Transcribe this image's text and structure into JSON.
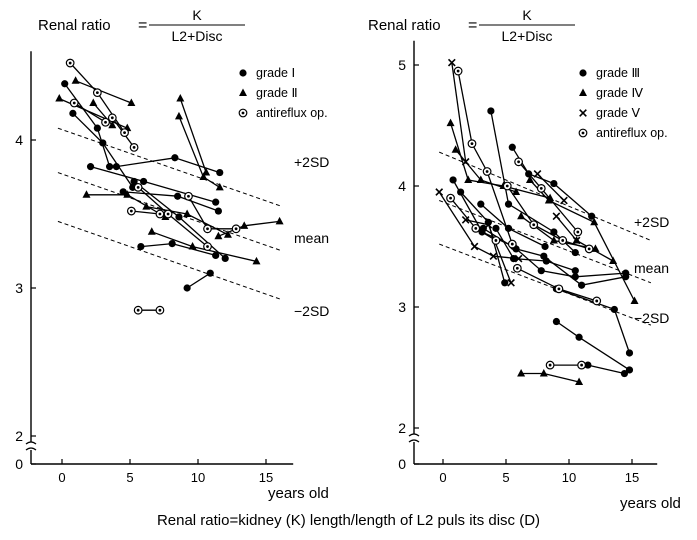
{
  "caption": "Renal ratio=kidney (K) length/length of L2 puls its disc (D)",
  "colors": {
    "ink": "#000000",
    "background": "#ffffff"
  },
  "chart_data": [
    {
      "type": "scatter",
      "title": {
        "label": "Renal ratio",
        "eq": "=",
        "numerator": "K",
        "denominator": "L2+Disc"
      },
      "xlabel": "years old",
      "xlim": [
        -2,
        17
      ],
      "ylim": [
        0,
        4.6
      ],
      "axis_break": true,
      "x_ticks": [
        0,
        5,
        10,
        15
      ],
      "y_ticks": [
        0,
        2,
        3,
        4
      ],
      "y_tick_labels": [
        "0",
        "2",
        "3",
        "4"
      ],
      "legend": {
        "position": "top-right",
        "items": [
          {
            "marker": "circle",
            "label": "grade Ⅰ"
          },
          {
            "marker": "triangle",
            "label": "grade Ⅱ"
          },
          {
            "marker": "ring",
            "label": "antireflux op."
          }
        ]
      },
      "reference_lines": [
        {
          "label": "+2SD",
          "points": [
            [
              -0.3,
              4.08
            ],
            [
              16.2,
              3.55
            ]
          ]
        },
        {
          "label": "mean",
          "points": [
            [
              -0.3,
              3.78
            ],
            [
              16.2,
              3.25
            ]
          ]
        },
        {
          "label": "−2SD",
          "points": [
            [
              -0.3,
              3.45
            ],
            [
              16.2,
              2.92
            ]
          ]
        }
      ],
      "series": [
        {
          "marker": "circle",
          "tracks": [
            [
              [
                0.2,
                4.38
              ],
              [
                2.6,
                4.08
              ],
              [
                3.5,
                3.82
              ]
            ],
            [
              [
                0.8,
                4.18
              ],
              [
                3.0,
                3.98
              ],
              [
                5.2,
                3.68
              ]
            ],
            [
              [
                2.1,
                3.82
              ],
              [
                6.0,
                3.72
              ],
              [
                11.3,
                3.58
              ]
            ],
            [
              [
                4.0,
                3.82
              ],
              [
                8.3,
                3.88
              ],
              [
                11.6,
                3.78
              ]
            ],
            [
              [
                5.3,
                3.72
              ],
              [
                8.6,
                3.48
              ],
              [
                12.0,
                3.2
              ]
            ],
            [
              [
                4.5,
                3.65
              ],
              [
                8.5,
                3.62
              ],
              [
                11.5,
                3.52
              ]
            ],
            [
              [
                5.8,
                3.28
              ],
              [
                8.1,
                3.3
              ],
              [
                11.3,
                3.22
              ]
            ],
            [
              [
                9.2,
                3.0
              ],
              [
                10.9,
                3.1
              ]
            ]
          ]
        },
        {
          "marker": "triangle",
          "tracks": [
            [
              [
                -0.2,
                4.28
              ],
              [
                4.8,
                4.08
              ]
            ],
            [
              [
                1.0,
                4.4
              ],
              [
                5.1,
                4.25
              ]
            ],
            [
              [
                2.3,
                4.25
              ],
              [
                3.7,
                4.1
              ]
            ],
            [
              [
                8.7,
                4.28
              ],
              [
                10.6,
                3.78
              ]
            ],
            [
              [
                8.6,
                4.16
              ],
              [
                10.4,
                3.75
              ],
              [
                11.6,
                3.68
              ]
            ],
            [
              [
                1.8,
                3.63
              ],
              [
                4.8,
                3.63
              ],
              [
                7.6,
                3.48
              ]
            ],
            [
              [
                6.6,
                3.38
              ],
              [
                9.6,
                3.28
              ],
              [
                14.3,
                3.18
              ]
            ],
            [
              [
                11.5,
                3.35
              ],
              [
                13.4,
                3.42
              ],
              [
                16.0,
                3.45
              ]
            ],
            [
              [
                6.2,
                3.55
              ],
              [
                9.2,
                3.5
              ],
              [
                12.2,
                3.36
              ]
            ]
          ]
        },
        {
          "marker": "ring",
          "tracks": [
            [
              [
                0.6,
                4.52
              ],
              [
                2.6,
                4.32
              ],
              [
                4.6,
                4.05
              ]
            ],
            [
              [
                0.9,
                4.25
              ],
              [
                3.2,
                4.12
              ]
            ],
            [
              [
                3.7,
                4.15
              ],
              [
                5.3,
                3.95
              ]
            ],
            [
              [
                5.6,
                3.68
              ],
              [
                7.8,
                3.5
              ],
              [
                10.7,
                3.28
              ]
            ],
            [
              [
                5.1,
                3.52
              ],
              [
                7.2,
                3.5
              ]
            ],
            [
              [
                9.3,
                3.62
              ],
              [
                10.7,
                3.4
              ],
              [
                12.8,
                3.4
              ]
            ],
            [
              [
                5.6,
                2.85
              ],
              [
                7.2,
                2.85
              ]
            ]
          ]
        }
      ]
    },
    {
      "type": "scatter",
      "title": {
        "label": "Renal ratio",
        "eq": "=",
        "numerator": "K",
        "denominator": "L2+Disc"
      },
      "xlabel": "years old",
      "xlim": [
        -1.5,
        17
      ],
      "ylim": [
        0,
        5.2
      ],
      "axis_break": true,
      "x_ticks": [
        0,
        5,
        10,
        15
      ],
      "y_ticks": [
        0,
        2,
        3,
        4,
        5
      ],
      "y_tick_labels": [
        "0",
        "2",
        "3",
        "4",
        "5"
      ],
      "legend": {
        "position": "top-right",
        "items": [
          {
            "marker": "circle",
            "label": "grade Ⅲ"
          },
          {
            "marker": "triangle",
            "label": "grade Ⅳ"
          },
          {
            "marker": "cross",
            "label": "grade Ⅴ"
          },
          {
            "marker": "ring",
            "label": "antireflux op."
          }
        ]
      },
      "reference_lines": [
        {
          "label": "+2SD",
          "points": [
            [
              -0.3,
              4.28
            ],
            [
              16.5,
              3.55
            ]
          ]
        },
        {
          "label": "mean",
          "points": [
            [
              -0.3,
              3.88
            ],
            [
              16.5,
              3.2
            ]
          ]
        },
        {
          "label": "−2SD",
          "points": [
            [
              -0.3,
              3.52
            ],
            [
              16.5,
              2.85
            ]
          ]
        }
      ],
      "series": [
        {
          "marker": "circle",
          "tracks": [
            [
              [
                3.8,
                4.62
              ],
              [
                5.2,
                3.85
              ],
              [
                8.8,
                3.62
              ],
              [
                10.5,
                3.45
              ]
            ],
            [
              [
                0.8,
                4.05
              ],
              [
                3.1,
                3.62
              ],
              [
                5.6,
                3.5
              ],
              [
                7.8,
                3.3
              ],
              [
                10.5,
                3.25
              ],
              [
                14.5,
                3.28
              ]
            ],
            [
              [
                3.2,
                3.65
              ],
              [
                5.8,
                3.48
              ],
              [
                8.0,
                3.42
              ],
              [
                11.0,
                3.18
              ],
              [
                14.5,
                3.25
              ]
            ],
            [
              [
                5.5,
                4.32
              ],
              [
                6.8,
                4.1
              ],
              [
                8.8,
                4.02
              ],
              [
                11.8,
                3.75
              ]
            ],
            [
              [
                4.2,
                3.65
              ],
              [
                5.6,
                3.4
              ],
              [
                8.2,
                3.38
              ],
              [
                10.5,
                3.3
              ]
            ],
            [
              [
                3.0,
                3.85
              ],
              [
                5.2,
                3.65
              ],
              [
                8.1,
                3.5
              ]
            ],
            [
              [
                1.4,
                3.95
              ],
              [
                3.6,
                3.7
              ],
              [
                4.9,
                3.2
              ]
            ],
            [
              [
                9.0,
                2.88
              ],
              [
                10.8,
                2.75
              ],
              [
                14.8,
                2.48
              ]
            ],
            [
              [
                9.0,
                3.15
              ],
              [
                13.6,
                2.98
              ],
              [
                14.8,
                2.62
              ]
            ],
            [
              [
                11.5,
                2.52
              ],
              [
                14.4,
                2.45
              ]
            ]
          ]
        },
        {
          "marker": "triangle",
          "tracks": [
            [
              [
                0.6,
                4.52
              ],
              [
                2.0,
                4.05
              ],
              [
                4.8,
                4.0
              ],
              [
                8.5,
                3.9
              ]
            ],
            [
              [
                1.0,
                4.3
              ],
              [
                3.0,
                4.05
              ],
              [
                5.8,
                3.95
              ]
            ],
            [
              [
                6.9,
                4.05
              ],
              [
                8.4,
                3.88
              ],
              [
                12.0,
                3.7
              ],
              [
                15.2,
                3.05
              ]
            ],
            [
              [
                6.2,
                3.75
              ],
              [
                8.8,
                3.55
              ],
              [
                12.1,
                3.48
              ]
            ],
            [
              [
                10.6,
                3.55
              ],
              [
                13.5,
                3.38
              ]
            ],
            [
              [
                6.2,
                2.45
              ],
              [
                8.0,
                2.45
              ],
              [
                10.8,
                2.38
              ]
            ]
          ]
        },
        {
          "marker": "cross",
          "tracks": [
            [
              [
                0.7,
                5.02
              ],
              [
                1.8,
                4.2
              ]
            ],
            [
              [
                -0.3,
                3.95
              ],
              [
                2.5,
                3.5
              ],
              [
                4.0,
                3.42
              ],
              [
                6.0,
                3.4
              ]
            ],
            [
              [
                1.8,
                3.72
              ],
              [
                3.6,
                3.68
              ],
              [
                5.4,
                3.2
              ]
            ],
            [
              [
                7.5,
                4.1
              ],
              [
                9.6,
                3.88
              ]
            ],
            [
              [
                9.0,
                3.75
              ],
              [
                10.6,
                3.55
              ]
            ]
          ]
        },
        {
          "marker": "ring",
          "tracks": [
            [
              [
                1.2,
                4.95
              ],
              [
                2.3,
                4.35
              ],
              [
                3.5,
                4.12
              ],
              [
                5.5,
                3.52
              ]
            ],
            [
              [
                0.6,
                3.9
              ],
              [
                2.6,
                3.65
              ],
              [
                4.2,
                3.55
              ]
            ],
            [
              [
                5.1,
                4.0
              ],
              [
                7.2,
                3.68
              ],
              [
                9.5,
                3.55
              ],
              [
                11.6,
                3.48
              ]
            ],
            [
              [
                6.0,
                4.2
              ],
              [
                7.8,
                3.98
              ],
              [
                10.7,
                3.62
              ]
            ],
            [
              [
                5.9,
                3.32
              ],
              [
                9.2,
                3.15
              ],
              [
                12.2,
                3.05
              ]
            ],
            [
              [
                8.5,
                2.52
              ],
              [
                11.0,
                2.52
              ]
            ]
          ]
        }
      ]
    }
  ]
}
